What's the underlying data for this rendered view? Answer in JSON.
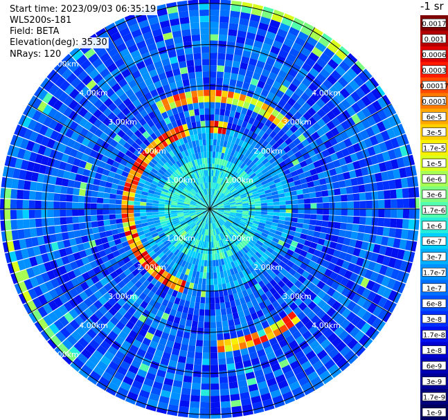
{
  "info": {
    "start_time": "Start time: 2023/09/03 06:35:19",
    "instrument": "WLS200s-181",
    "field": "Field: BETA",
    "elevation": "Elevation(deg): 35.30",
    "nrays": "NRays: 120"
  },
  "chart_data": {
    "type": "heatmap",
    "projection": "polar-ppi",
    "title": "",
    "range_unit": "km",
    "range_max_km": 5.1,
    "range_rings_km": [
      1,
      2,
      3,
      4,
      5
    ],
    "ring_labels": [
      "1.00km",
      "2.00km",
      "3.00km",
      "4.00km",
      "5.00km"
    ],
    "n_rays": 120,
    "azimuth_lines_deg": [
      0,
      30,
      60,
      90,
      120,
      150,
      180,
      210,
      240,
      270,
      300,
      330
    ],
    "colorbar": {
      "unit_label": "-1 sr",
      "levels": [
        "0.0017",
        "0.001",
        "0.0006",
        "0.0003",
        "0.00017",
        "0.0001",
        "6e-5",
        "3e-5",
        "1.7e-5",
        "1e-5",
        "6e-6",
        "3e-6",
        "1.7e-6",
        "1e-6",
        "6e-7",
        "3e-7",
        "1.7e-7",
        "1e-7",
        "6e-8",
        "3e-8",
        "1.7e-8",
        "1e-8",
        "6e-9",
        "3e-9",
        "1.7e-9",
        "1e-9"
      ],
      "colors": [
        "#800000",
        "#b40000",
        "#e00000",
        "#ff1a00",
        "#ff4a00",
        "#ff7a00",
        "#ffa800",
        "#ffd000",
        "#f8f000",
        "#d8ff1e",
        "#a6ff52",
        "#7cff80",
        "#52ffac",
        "#26ecdc",
        "#00d0ff",
        "#00b0ff",
        "#0090ff",
        "#0070ff",
        "#0050ff",
        "#0030ff",
        "#0010f0",
        "#0000d0",
        "#0000b4",
        "#000098",
        "#00007c",
        "#000060"
      ]
    },
    "features": {
      "inner_ring_enhancement_km": 1.95,
      "high_values_near_azimuth_deg": [
        330,
        300,
        270,
        240,
        210,
        150,
        120
      ]
    }
  }
}
